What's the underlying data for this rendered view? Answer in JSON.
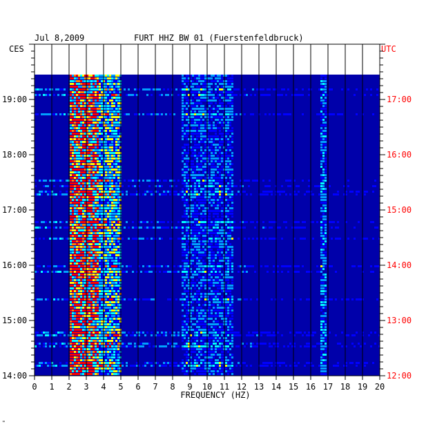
{
  "header": {
    "date": "Jul 8,2009",
    "station": "FURT HHZ BW 01 (Fuerstenfeldbruck)"
  },
  "timezones": {
    "left": "CES",
    "right": "UTC",
    "right_color": "#ff0000"
  },
  "footer_mark": "\"",
  "chart_data": {
    "type": "heatmap",
    "title": "FURT HHZ BW 01 (Fuerstenfeldbruck)",
    "date": "Jul 8,2009",
    "xlabel": "FREQUENCY (HZ)",
    "xlim": [
      0,
      20
    ],
    "x_ticks": [
      "0",
      "1",
      "2",
      "3",
      "4",
      "5",
      "6",
      "7",
      "8",
      "9",
      "10",
      "11",
      "12",
      "13",
      "14",
      "15",
      "16",
      "17",
      "18",
      "19",
      "20"
    ],
    "y_left_label": "CES",
    "y_left_ticks": [
      "14:00",
      "15:00",
      "16:00",
      "17:00",
      "18:00",
      "19:00"
    ],
    "y_right_label": "UTC",
    "y_right_ticks": [
      "12:00",
      "13:00",
      "14:00",
      "15:00",
      "16:00",
      "17:00"
    ],
    "time_range_ces": [
      "14:00",
      "19:28"
    ],
    "colormap": [
      "#000090",
      "#0000ff",
      "#00a0ff",
      "#00ffff",
      "#ffff00",
      "#ff8000",
      "#ff0000"
    ],
    "background_color": "#0000aa",
    "energy_bands_hz": [
      {
        "from": 2.0,
        "to": 3.6,
        "level": 0.75
      },
      {
        "from": 3.6,
        "to": 5.0,
        "level": 0.45
      },
      {
        "from": 8.5,
        "to": 11.5,
        "level": 0.25
      },
      {
        "from": 16.5,
        "to": 16.8,
        "level": 0.3
      }
    ],
    "grid": true
  }
}
